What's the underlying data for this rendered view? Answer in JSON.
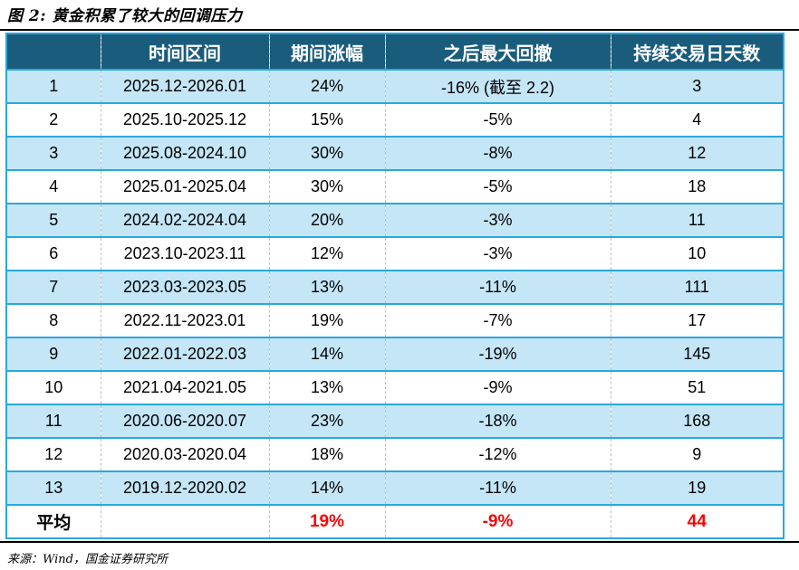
{
  "title": "图 2: 黄金积累了较大的回调压力",
  "source": "来源：Wind，国金证券研究所",
  "colors": {
    "header_bg": "#1A5C7C",
    "row_alt_bg": "#C4E6F7",
    "border_blue": "#29A8E0",
    "divider_dash": "#BFBFBF",
    "highlight_red": "#FF0000"
  },
  "table": {
    "columns": [
      "",
      "时间区间",
      "期间涨幅",
      "之后最大回撤",
      "持续交易日天数"
    ],
    "rows": [
      {
        "index": "1",
        "period": "2025.12-2026.01",
        "gain": "24%",
        "drawdown": "-16% (截至 2.2)",
        "days": "3"
      },
      {
        "index": "2",
        "period": "2025.10-2025.12",
        "gain": "15%",
        "drawdown": "-5%",
        "days": "4"
      },
      {
        "index": "3",
        "period": "2025.08-2024.10",
        "gain": "30%",
        "drawdown": "-8%",
        "days": "12"
      },
      {
        "index": "4",
        "period": "2025.01-2025.04",
        "gain": "30%",
        "drawdown": "-5%",
        "days": "18"
      },
      {
        "index": "5",
        "period": "2024.02-2024.04",
        "gain": "20%",
        "drawdown": "-3%",
        "days": "11"
      },
      {
        "index": "6",
        "period": "2023.10-2023.11",
        "gain": "12%",
        "drawdown": "-3%",
        "days": "10"
      },
      {
        "index": "7",
        "period": "2023.03-2023.05",
        "gain": "13%",
        "drawdown": "-11%",
        "days": "111"
      },
      {
        "index": "8",
        "period": "2022.11-2023.01",
        "gain": "19%",
        "drawdown": "-7%",
        "days": "17"
      },
      {
        "index": "9",
        "period": "2022.01-2022.03",
        "gain": "14%",
        "drawdown": "-19%",
        "days": "145"
      },
      {
        "index": "10",
        "period": "2021.04-2021.05",
        "gain": "13%",
        "drawdown": "-9%",
        "days": "51"
      },
      {
        "index": "11",
        "period": "2020.06-2020.07",
        "gain": "23%",
        "drawdown": "-18%",
        "days": "168"
      },
      {
        "index": "12",
        "period": "2020.03-2020.04",
        "gain": "18%",
        "drawdown": "-12%",
        "days": "9"
      },
      {
        "index": "13",
        "period": "2019.12-2020.02",
        "gain": "14%",
        "drawdown": "-11%",
        "days": "19"
      }
    ],
    "average": {
      "label": "平均",
      "period": "",
      "gain": "19%",
      "drawdown": "-9%",
      "days": "44"
    }
  }
}
